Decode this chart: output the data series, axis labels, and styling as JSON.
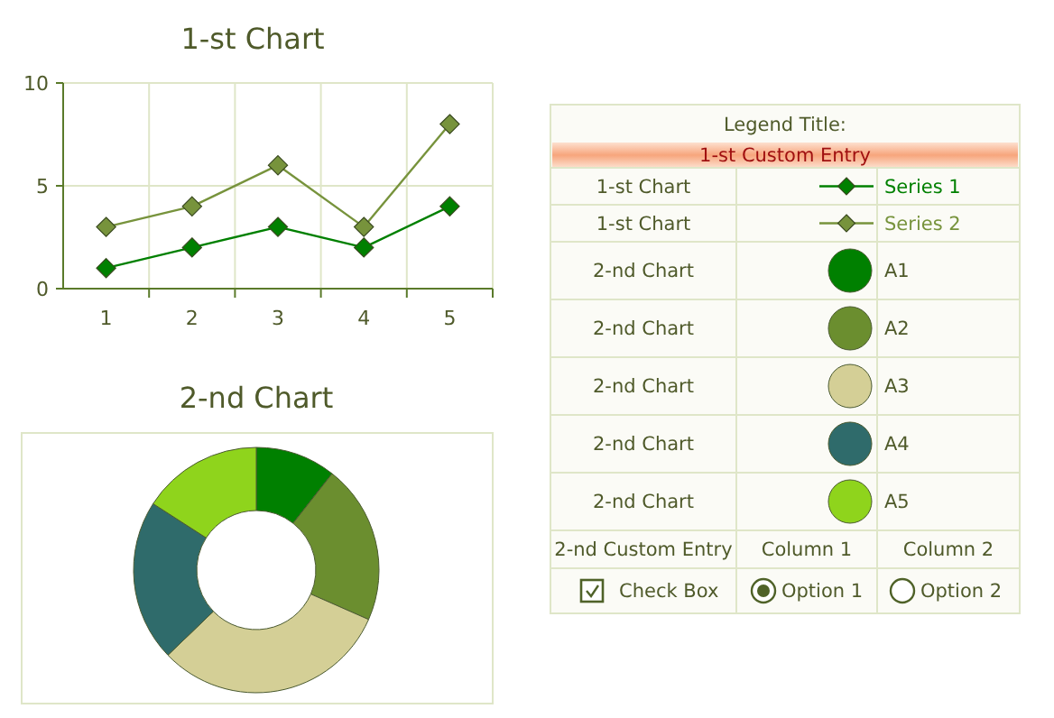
{
  "chart_data": [
    {
      "type": "line",
      "title": "1-st Chart",
      "categories": [
        "1",
        "2",
        "3",
        "4",
        "5"
      ],
      "ylim": [
        0,
        10
      ],
      "yticks": [
        0,
        5,
        10
      ],
      "grid": true,
      "marker": "diamond",
      "line_style": "solid",
      "legend": "right",
      "series": [
        {
          "name": "Series 1",
          "color": "#008000",
          "values": [
            1,
            2,
            3,
            2,
            4
          ]
        },
        {
          "name": "Series 2",
          "color": "#77933c",
          "values": [
            3,
            4,
            6,
            3,
            8
          ]
        }
      ]
    },
    {
      "type": "donut",
      "title": "2-nd Chart",
      "legend": "right",
      "categories": [
        "A1",
        "A2",
        "A3",
        "A4",
        "A5"
      ],
      "values": [
        10.6,
        21,
        31.2,
        21.3,
        15.9
      ],
      "colors": [
        "#008000",
        "#6b8e2f",
        "#d4cf96",
        "#2f6b6b",
        "#8fd41c"
      ]
    },
    {
      "type": "other",
      "legend_title": "Legend Title:",
      "annotations": [
        "1-st Custom Entry",
        "2-nd Custom Entry",
        "Column 1",
        "Column 2",
        "Check Box",
        "Option 1",
        "Option 2"
      ]
    }
  ]
}
